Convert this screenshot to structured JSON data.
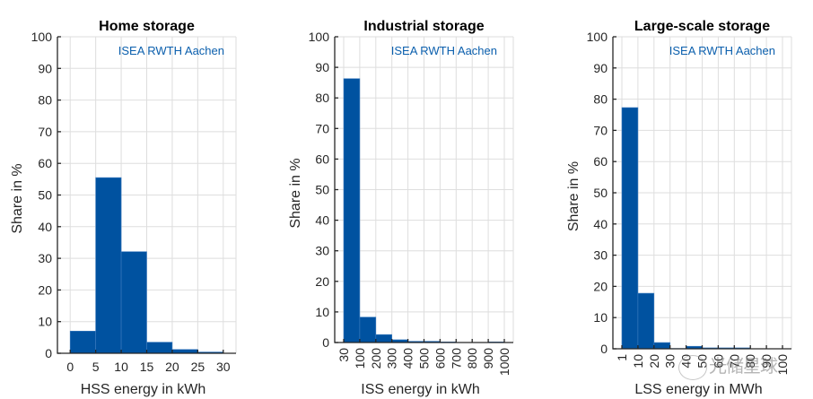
{
  "chart_data": [
    {
      "type": "bar",
      "title": "Home storage",
      "xlabel": "HSS energy in kWh",
      "ylabel": "Share in %",
      "annotation": "ISEA RWTH Aachen",
      "bin_edges": [
        0,
        5,
        10,
        15,
        20,
        25,
        30
      ],
      "values": [
        7.0,
        55.5,
        32.1,
        3.5,
        1.2,
        0.4
      ],
      "xticks": [
        "0",
        "5",
        "10",
        "15",
        "20",
        "25",
        "30"
      ],
      "xlim": [
        -2.5,
        32.5
      ],
      "ylim": [
        0,
        100
      ],
      "yticks": [
        "0",
        "10",
        "20",
        "30",
        "40",
        "50",
        "60",
        "70",
        "80",
        "90",
        "100"
      ],
      "xtick_rotation": "horizontal",
      "grid": true
    },
    {
      "type": "bar",
      "title": "Industrial storage",
      "xlabel": "ISS energy in kWh",
      "ylabel": "Share in %",
      "annotation": "ISEA RWTH Aachen",
      "bin_edges": [
        "30",
        "100",
        "200",
        "300",
        "400",
        "500",
        "600",
        "700",
        "800",
        "900",
        "1000"
      ],
      "values": [
        86.3,
        8.3,
        2.6,
        0.9,
        0.4,
        0.4,
        0.2,
        0.0,
        0.0,
        0.2
      ],
      "xticks": [
        "30",
        "100",
        "200",
        "300",
        "400",
        "500",
        "600",
        "700",
        "800",
        "900",
        "1000"
      ],
      "ylim": [
        0,
        100
      ],
      "yticks": [
        "0",
        "10",
        "20",
        "30",
        "40",
        "50",
        "60",
        "70",
        "80",
        "90",
        "100"
      ],
      "xtick_rotation": "vertical",
      "grid": true
    },
    {
      "type": "bar",
      "title": "Large-scale storage",
      "xlabel": "LSS energy in MWh",
      "ylabel": "Share in %",
      "annotation": "ISEA RWTH Aachen",
      "bin_edges": [
        "1",
        "10",
        "20",
        "30",
        "40",
        "50",
        "60",
        "70",
        "80",
        "90",
        "100"
      ],
      "values": [
        77.3,
        17.8,
        2.0,
        0.1,
        0.8,
        0.3,
        0.3,
        0.3,
        0.0,
        0.0
      ],
      "xticks": [
        "1",
        "10",
        "20",
        "30",
        "40",
        "50",
        "60",
        "70",
        "80",
        "90",
        "100"
      ],
      "ylim": [
        0,
        100
      ],
      "yticks": [
        "0",
        "10",
        "20",
        "30",
        "40",
        "50",
        "60",
        "70",
        "80",
        "90",
        "100"
      ],
      "xtick_rotation": "vertical",
      "grid": true
    }
  ],
  "colors": {
    "bar": "#0052a0",
    "annotation": "#0b5fad",
    "axis": "#262626",
    "grid": "#dedede"
  },
  "watermark": {
    "text": "光储星球"
  }
}
